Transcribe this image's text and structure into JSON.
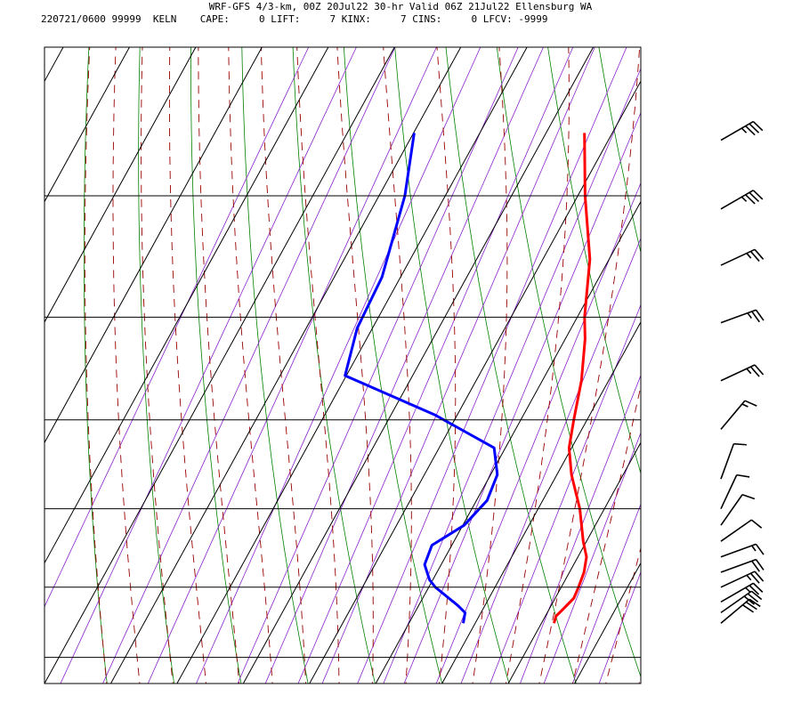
{
  "header": {
    "title": "WRF-GFS 4/3-km, 00Z 20Jul22 30-hr Valid 06Z 21Jul22 Ellensburg WA",
    "info": "220721/0600 99999  KELN    CAPE:     0 LIFT:     7 KINX:     7 CINS:     0 LFCV: -9999"
  },
  "colors": {
    "temperature": "#ff0000",
    "dewpoint": "#0000ff",
    "grid": "#000000",
    "dry_adiabat": "#008000",
    "moist_adiabat": "#990000",
    "mixing_ratio": "#8b22cc",
    "wind_barb": "#000000"
  },
  "chart_data": {
    "type": "line",
    "title": "",
    "xlabel": "",
    "ylabel": "",
    "x_ticks": [
      "-50",
      "-40",
      "-30",
      "-20",
      "-10",
      "0",
      "10",
      "20",
      "30",
      "40"
    ],
    "y_ticks": [
      "400",
      "500",
      "600",
      "700",
      "800",
      "900",
      "1000"
    ],
    "xlim": [
      -50,
      40
    ],
    "ylim": [
      1040,
      400
    ],
    "y_scale": "log-pressure",
    "grid": true,
    "series": [
      {
        "key": "temperature",
        "points": [
          {
            "p": 950,
            "t": 21.9
          },
          {
            "p": 940,
            "t": 21.6
          },
          {
            "p": 930,
            "t": 22.1
          },
          {
            "p": 915,
            "t": 22.8
          },
          {
            "p": 900,
            "t": 22.6
          },
          {
            "p": 880,
            "t": 22.2
          },
          {
            "p": 860,
            "t": 21.3
          },
          {
            "p": 840,
            "t": 19.5
          },
          {
            "p": 800,
            "t": 16.3
          },
          {
            "p": 760,
            "t": 12.2
          },
          {
            "p": 730,
            "t": 9.6
          },
          {
            "p": 700,
            "t": 8.0
          },
          {
            "p": 660,
            "t": 5.9
          },
          {
            "p": 620,
            "t": 3.0
          },
          {
            "p": 600,
            "t": 1.1
          },
          {
            "p": 550,
            "t": -2.9
          },
          {
            "p": 500,
            "t": -8.9
          },
          {
            "p": 455,
            "t": -14.2
          }
        ]
      },
      {
        "key": "dewpoint",
        "points": [
          {
            "p": 950,
            "t": 8.2
          },
          {
            "p": 935,
            "t": 7.6
          },
          {
            "p": 925,
            "t": 5.9
          },
          {
            "p": 900,
            "t": 1.0
          },
          {
            "p": 890,
            "t": -0.5
          },
          {
            "p": 870,
            "t": -2.5
          },
          {
            "p": 845,
            "t": -3.0
          },
          {
            "p": 820,
            "t": 0.2
          },
          {
            "p": 790,
            "t": 1.6
          },
          {
            "p": 760,
            "t": 1.0
          },
          {
            "p": 730,
            "t": -1.7
          },
          {
            "p": 695,
            "t": -13.3
          },
          {
            "p": 655,
            "t": -30.2
          },
          {
            "p": 610,
            "t": -32.3
          },
          {
            "p": 565,
            "t": -32.8
          },
          {
            "p": 500,
            "t": -36.1
          },
          {
            "p": 455,
            "t": -39.9
          }
        ]
      }
    ],
    "wind_barbs": [
      {
        "p": 460,
        "dir": 240,
        "kt": 35
      },
      {
        "p": 510,
        "dir": 240,
        "kt": 35
      },
      {
        "p": 555,
        "dir": 245,
        "kt": 25
      },
      {
        "p": 605,
        "dir": 250,
        "kt": 25
      },
      {
        "p": 660,
        "dir": 245,
        "kt": 25
      },
      {
        "p": 710,
        "dir": 220,
        "kt": 15
      },
      {
        "p": 765,
        "dir": 200,
        "kt": 10
      },
      {
        "p": 800,
        "dir": 205,
        "kt": 10
      },
      {
        "p": 820,
        "dir": 215,
        "kt": 10
      },
      {
        "p": 840,
        "dir": 235,
        "kt": 10
      },
      {
        "p": 860,
        "dir": 250,
        "kt": 15
      },
      {
        "p": 880,
        "dir": 250,
        "kt": 20
      },
      {
        "p": 900,
        "dir": 245,
        "kt": 25
      },
      {
        "p": 920,
        "dir": 240,
        "kt": 25
      },
      {
        "p": 935,
        "dir": 235,
        "kt": 30
      },
      {
        "p": 950,
        "dir": 230,
        "kt": 30
      }
    ]
  }
}
